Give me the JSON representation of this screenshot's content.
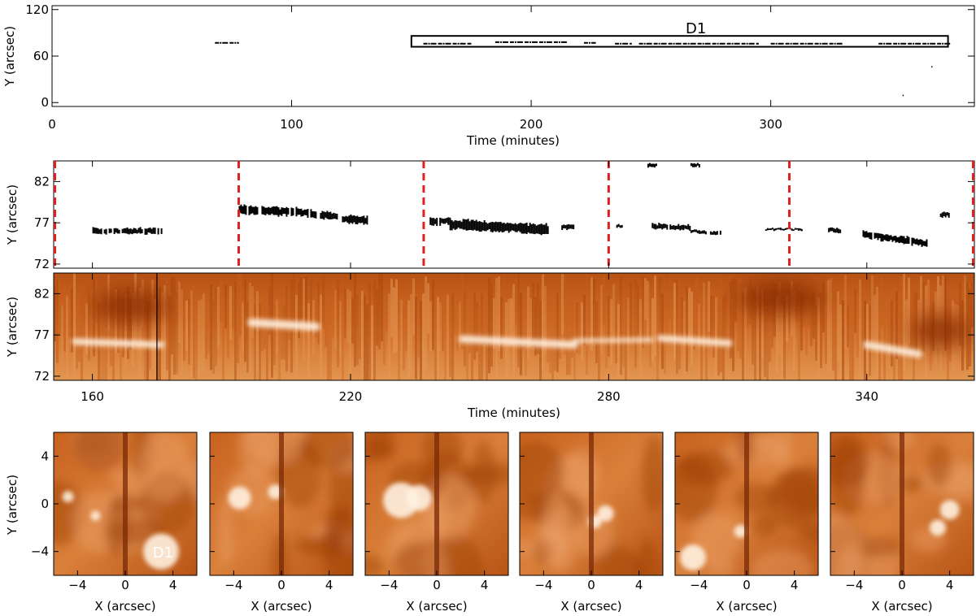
{
  "panel_a": {
    "ylabel": "Y (arcsec)",
    "xlabel": "Time (minutes)",
    "x_ticks": [
      "0",
      "100",
      "200",
      "300"
    ],
    "y_ticks": [
      "0",
      "60",
      "120"
    ],
    "box_label": "D1"
  },
  "panel_b": {
    "ylabel": "Y (arcsec)",
    "y_ticks": [
      "72",
      "77",
      "82"
    ]
  },
  "panel_c": {
    "ylabel": "Y (arcsec)",
    "xlabel": "Time (minutes)",
    "x_ticks": [
      "160",
      "220",
      "280",
      "340"
    ],
    "y_ticks": [
      "72",
      "77",
      "82"
    ]
  },
  "snapshots": {
    "ylabel": "Y (arcsec)",
    "xlabel": "X (arcsec)",
    "x_ticks": [
      "−4",
      "0",
      "4"
    ],
    "y_ticks": [
      "−4",
      "0",
      "4"
    ],
    "annotation": "D1"
  },
  "colors": {
    "marker_line": "#e02020",
    "heat_dark": "#8a2a00",
    "heat_mid": "#d4732e",
    "heat_bright": "#fff1e0"
  },
  "chart_data": [
    {
      "type": "scatter",
      "title": "",
      "xlabel": "Time (minutes)",
      "ylabel": "Y (arcsec)",
      "xlim": [
        0,
        385
      ],
      "ylim": [
        -5,
        125
      ],
      "box": {
        "label": "D1",
        "x": [
          150,
          374
        ],
        "y": [
          72,
          86
        ]
      },
      "segments": [
        {
          "x": [
            68,
            78
          ],
          "y": 77
        },
        {
          "x": [
            155,
            175
          ],
          "y": 76
        },
        {
          "x": [
            185,
            215
          ],
          "y": 78
        },
        {
          "x": [
            222,
            227
          ],
          "y": 77
        },
        {
          "x": [
            235,
            242
          ],
          "y": 76
        },
        {
          "x": [
            245,
            295
          ],
          "y": 76
        },
        {
          "x": [
            300,
            330
          ],
          "y": 76
        },
        {
          "x": [
            345,
            375
          ],
          "y": 76
        }
      ]
    },
    {
      "type": "scatter",
      "title": "",
      "xlabel": "",
      "ylabel": "Y (arcsec)",
      "xlim": [
        151,
        365
      ],
      "ylim": [
        71.5,
        84.5
      ],
      "vertical_markers": [
        151,
        194,
        237,
        280,
        322,
        365
      ],
      "blobs": [
        {
          "x": [
            160,
            176
          ],
          "y0": 76.0,
          "y1": 76.0,
          "thickness": 0.8
        },
        {
          "x": [
            194,
            211
          ],
          "y0": 78.6,
          "y1": 78.2,
          "thickness": 1.2
        },
        {
          "x": [
            211,
            217
          ],
          "y0": 78.0,
          "y1": 77.8,
          "thickness": 1.0
        },
        {
          "x": [
            218,
            224
          ],
          "y0": 77.5,
          "y1": 77.3,
          "thickness": 1.2
        },
        {
          "x": [
            238,
            243
          ],
          "y0": 77.2,
          "y1": 77.2,
          "thickness": 1.0
        },
        {
          "x": [
            243,
            266
          ],
          "y0": 76.8,
          "y1": 76.2,
          "thickness": 1.4
        },
        {
          "x": [
            269,
            272
          ],
          "y0": 76.5,
          "y1": 76.5,
          "thickness": 0.7
        },
        {
          "x": [
            281,
            283
          ],
          "y0": 76.6,
          "y1": 76.6,
          "thickness": 0.5
        },
        {
          "x": [
            290,
            299
          ],
          "y0": 76.6,
          "y1": 76.4,
          "thickness": 0.7
        },
        {
          "x": [
            299,
            306
          ],
          "y0": 76.0,
          "y1": 75.7,
          "thickness": 0.5
        },
        {
          "x": [
            316,
            325
          ],
          "y0": 76.2,
          "y1": 76.2,
          "thickness": 0.3
        },
        {
          "x": [
            331,
            334
          ],
          "y0": 76.2,
          "y1": 76.0,
          "thickness": 0.6
        },
        {
          "x": [
            339,
            354
          ],
          "y0": 75.6,
          "y1": 74.5,
          "thickness": 1.0
        },
        {
          "x": [
            357,
            359
          ],
          "y0": 78.0,
          "y1": 78.0,
          "thickness": 0.7
        },
        {
          "x": [
            289,
            291
          ],
          "y0": 84.0,
          "y1": 84.0,
          "thickness": 0.5
        },
        {
          "x": [
            299,
            301
          ],
          "y0": 84.0,
          "y1": 84.0,
          "thickness": 0.5
        }
      ]
    },
    {
      "type": "heatmap",
      "title": "",
      "xlabel": "Time (minutes)",
      "ylabel": "Y (arcsec)",
      "xlim": [
        151,
        365
      ],
      "ylim": [
        71.5,
        84.5
      ],
      "vertical_line": 175,
      "bright_features": [
        {
          "x": [
            156,
            176
          ],
          "y0": 76.2,
          "y1": 75.8,
          "w": 0.8
        },
        {
          "x": [
            197,
            212
          ],
          "y0": 78.5,
          "y1": 78.0,
          "w": 1.0
        },
        {
          "x": [
            246,
            272
          ],
          "y0": 76.5,
          "y1": 75.8,
          "w": 0.9
        },
        {
          "x": [
            272,
            290
          ],
          "y0": 76.3,
          "y1": 76.4,
          "w": 0.5
        },
        {
          "x": [
            292,
            308
          ],
          "y0": 76.6,
          "y1": 76.0,
          "w": 0.8
        },
        {
          "x": [
            340,
            352
          ],
          "y0": 75.8,
          "y1": 74.7,
          "w": 0.9
        }
      ],
      "dark_regions": [
        {
          "x": [
            160,
            178
          ],
          "y": 80.5
        },
        {
          "x": [
            350,
            364
          ],
          "y": 77.5
        },
        {
          "x": [
            310,
            330
          ],
          "y": 81.5
        }
      ]
    }
  ]
}
